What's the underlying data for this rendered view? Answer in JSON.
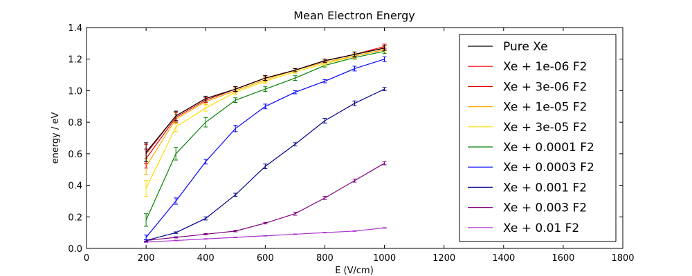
{
  "chart_data": {
    "type": "line",
    "title": "Mean Electron Energy",
    "xlabel": "E (V/cm)",
    "ylabel": "energy / eV",
    "xlim": [
      0,
      1800
    ],
    "ylim": [
      0.0,
      1.4
    ],
    "xticks": [
      0,
      200,
      400,
      600,
      800,
      1000,
      1200,
      1400,
      1600,
      1800
    ],
    "yticks": [
      0.0,
      0.2,
      0.4,
      0.6,
      0.8,
      1.0,
      1.2,
      1.4
    ],
    "xtick_labels": [
      "0",
      "200",
      "400",
      "600",
      "800",
      "1000",
      "1200",
      "1400",
      "1600",
      "1800"
    ],
    "ytick_labels": [
      "0.0",
      "0.2",
      "0.4",
      "0.6",
      "0.8",
      "1.0",
      "1.2",
      "1.4"
    ],
    "grid": false,
    "legend_position": "top-right",
    "x": [
      200,
      300,
      400,
      500,
      600,
      700,
      800,
      900,
      1000
    ],
    "series": [
      {
        "name": "Pure Xe",
        "color": "#000000",
        "values": [
          0.61,
          0.84,
          0.95,
          1.01,
          1.08,
          1.13,
          1.19,
          1.23,
          1.27
        ],
        "errors": [
          0.06,
          0.03,
          0.015,
          0.015,
          0.015,
          0.01,
          0.01,
          0.015,
          0.015
        ]
      },
      {
        "name": "Xe + 1e-06 F2",
        "color": "#ff0000",
        "values": [
          0.6,
          0.84,
          0.95,
          1.01,
          1.08,
          1.13,
          1.19,
          1.23,
          1.28
        ],
        "errors": [
          0.06,
          0.03,
          0.015,
          0.015,
          0.015,
          0.01,
          0.01,
          0.015,
          0.015
        ]
      },
      {
        "name": "Xe + 3e-06 F2",
        "color": "#e00000",
        "values": [
          0.57,
          0.83,
          0.94,
          1.01,
          1.08,
          1.13,
          1.19,
          1.23,
          1.27
        ],
        "errors": [
          0.06,
          0.03,
          0.015,
          0.015,
          0.015,
          0.01,
          0.01,
          0.015,
          0.015
        ]
      },
      {
        "name": "Xe + 1e-05 F2",
        "color": "#ffaa00",
        "values": [
          0.52,
          0.82,
          0.93,
          1.0,
          1.07,
          1.13,
          1.18,
          1.22,
          1.26
        ],
        "errors": [
          0.05,
          0.03,
          0.015,
          0.015,
          0.015,
          0.01,
          0.01,
          0.015,
          0.015
        ]
      },
      {
        "name": "Xe + 3e-05 F2",
        "color": "#ffdd00",
        "values": [
          0.38,
          0.77,
          0.89,
          0.99,
          1.06,
          1.12,
          1.17,
          1.22,
          1.26
        ],
        "errors": [
          0.05,
          0.03,
          0.02,
          0.015,
          0.015,
          0.01,
          0.01,
          0.015,
          0.015
        ]
      },
      {
        "name": "Xe + 0.0001 F2",
        "color": "#008000",
        "values": [
          0.18,
          0.6,
          0.8,
          0.94,
          1.01,
          1.08,
          1.16,
          1.21,
          1.25
        ],
        "errors": [
          0.04,
          0.04,
          0.03,
          0.015,
          0.015,
          0.015,
          0.01,
          0.01,
          0.015
        ]
      },
      {
        "name": "Xe + 0.0003 F2",
        "color": "#0000ff",
        "values": [
          0.07,
          0.3,
          0.55,
          0.76,
          0.9,
          0.99,
          1.06,
          1.14,
          1.2
        ],
        "errors": [
          0.015,
          0.02,
          0.015,
          0.02,
          0.015,
          0.01,
          0.01,
          0.015,
          0.015
        ]
      },
      {
        "name": "Xe + 0.001 F2",
        "color": "#00008b",
        "values": [
          0.05,
          0.1,
          0.19,
          0.34,
          0.52,
          0.66,
          0.81,
          0.92,
          1.01
        ],
        "errors": [
          0.005,
          0.005,
          0.01,
          0.01,
          0.015,
          0.01,
          0.015,
          0.015,
          0.01
        ]
      },
      {
        "name": "Xe + 0.003 F2",
        "color": "#800080",
        "values": [
          0.05,
          0.07,
          0.09,
          0.11,
          0.16,
          0.22,
          0.32,
          0.43,
          0.54
        ],
        "errors": [
          0.004,
          0.004,
          0.004,
          0.005,
          0.005,
          0.01,
          0.01,
          0.01,
          0.01
        ]
      },
      {
        "name": "Xe + 0.01 F2",
        "color": "#aa33cc",
        "values": [
          0.04,
          0.05,
          0.06,
          0.07,
          0.08,
          0.09,
          0.1,
          0.11,
          0.13
        ],
        "errors": [
          0.002,
          0.002,
          0.002,
          0.002,
          0.002,
          0.002,
          0.002,
          0.002,
          0.002
        ]
      }
    ]
  }
}
